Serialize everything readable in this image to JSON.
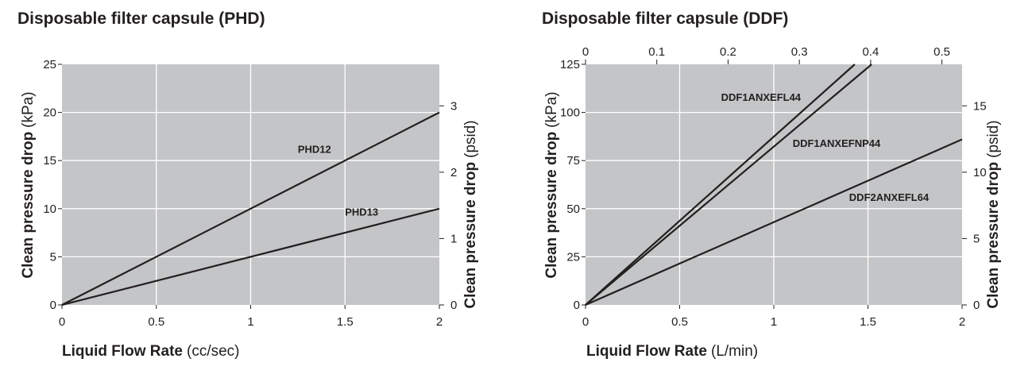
{
  "chart_data": [
    {
      "type": "line",
      "title": "Disposable filter capsule (PHD)",
      "xlabel": "Liquid Flow Rate",
      "xlabel_unit": "(cc/sec)",
      "ylabel": "Clean pressure drop",
      "ylabel_unit": "(kPa)",
      "y2label": "Clean pressure drop",
      "y2label_unit": "(psid)",
      "xlim": [
        0,
        2
      ],
      "ylim": [
        0,
        25
      ],
      "y2lim": [
        0,
        3.626
      ],
      "xticks": [
        0,
        0.5,
        1,
        1.5,
        2
      ],
      "xtick_labels": [
        "0",
        "0.5",
        "1",
        "1.5",
        "2"
      ],
      "yticks": [
        0,
        5,
        10,
        15,
        20,
        25
      ],
      "ytick_labels": [
        "0",
        "5",
        "10",
        "15",
        "20",
        "25"
      ],
      "y2ticks": [
        0,
        1,
        2,
        3
      ],
      "y2tick_labels": [
        "0",
        "1",
        "2",
        "3"
      ],
      "grid": true,
      "background": "#c4c5c7",
      "line_color": "#231f20",
      "series": [
        {
          "name": "PHD12",
          "x": [
            0,
            2
          ],
          "y": [
            0,
            20
          ],
          "label_at": [
            1.25,
            15.8
          ]
        },
        {
          "name": "PHD13",
          "x": [
            0,
            2
          ],
          "y": [
            0,
            10
          ],
          "label_at": [
            1.5,
            9.3
          ]
        }
      ]
    },
    {
      "type": "line",
      "title": "Disposable filter capsule (DDF)",
      "xlabel": "Liquid Flow Rate",
      "xlabel_unit": "(L/min)",
      "ylabel": "Clean pressure drop",
      "ylabel_unit": "(kPa)",
      "y2label": "Clean pressure drop",
      "y2label_unit": "(psid)",
      "xlim": [
        0,
        2
      ],
      "ylim": [
        0,
        125
      ],
      "y2lim": [
        0,
        18.13
      ],
      "x2lim": [
        0,
        0.5283
      ],
      "xticks": [
        0,
        0.5,
        1,
        1.5,
        2
      ],
      "xtick_labels": [
        "0",
        "0.5",
        "1",
        "1.5",
        "2"
      ],
      "x2ticks": [
        0,
        0.1,
        0.2,
        0.3,
        0.4,
        0.5
      ],
      "x2tick_labels": [
        "0",
        "0.1",
        "0.2",
        "0.3",
        "0.4",
        "0.5"
      ],
      "yticks": [
        0,
        25,
        50,
        75,
        100,
        125
      ],
      "ytick_labels": [
        "0",
        "25",
        "50",
        "75",
        "100",
        "125"
      ],
      "y2ticks": [
        0,
        5,
        10,
        15
      ],
      "y2tick_labels": [
        "0",
        "5",
        "10",
        "15"
      ],
      "grid": true,
      "background": "#c4c5c7",
      "line_color": "#231f20",
      "series": [
        {
          "name": "DDF1ANXEFL44",
          "x": [
            0,
            1.43
          ],
          "y": [
            0,
            125
          ],
          "label_at": [
            0.72,
            106
          ]
        },
        {
          "name": "DDF1ANXEFNP44",
          "x": [
            0,
            1.52
          ],
          "y": [
            0,
            125
          ],
          "label_at": [
            1.1,
            82
          ]
        },
        {
          "name": "DDF2ANXEFL64",
          "x": [
            0,
            2
          ],
          "y": [
            0,
            86
          ],
          "label_at": [
            1.4,
            54
          ]
        }
      ]
    }
  ]
}
